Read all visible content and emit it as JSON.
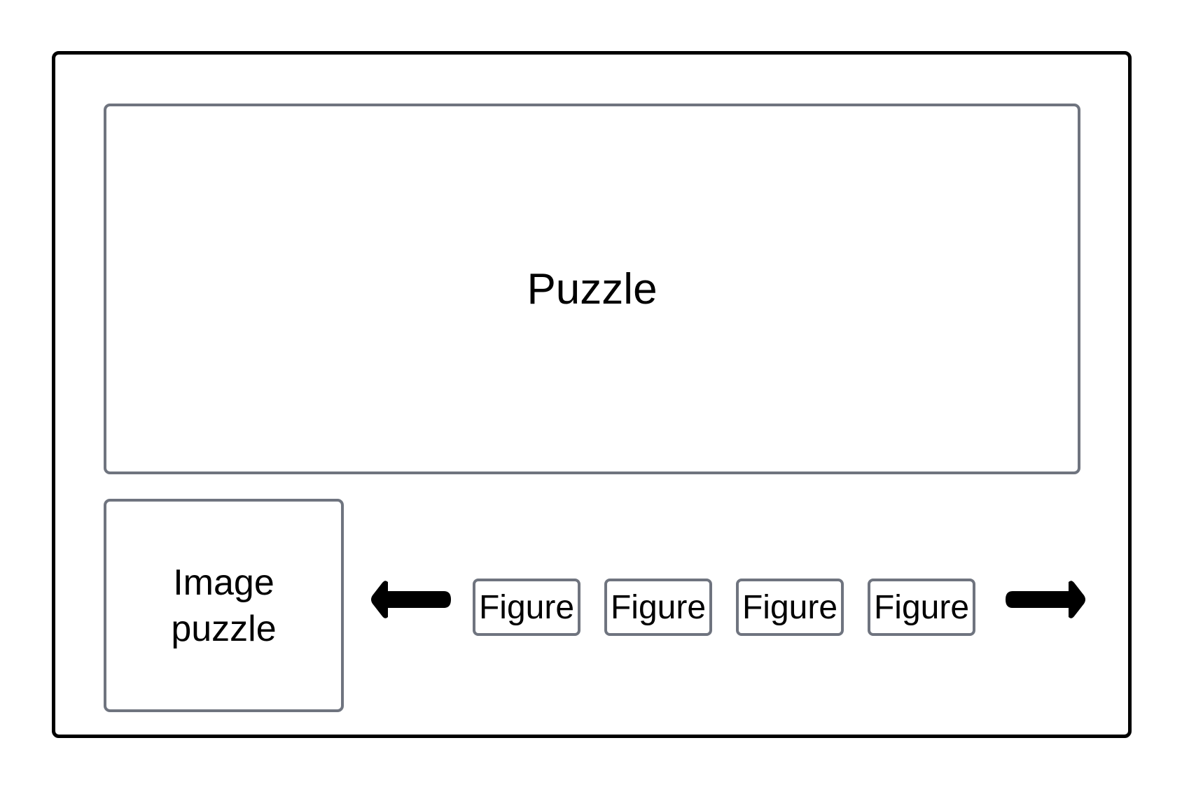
{
  "puzzle": {
    "label": "Puzzle"
  },
  "image_puzzle": {
    "label": "Image\npuzzle"
  },
  "figures": [
    {
      "label": "Figure"
    },
    {
      "label": "Figure"
    },
    {
      "label": "Figure"
    },
    {
      "label": "Figure"
    }
  ],
  "arrows": {
    "left": "left-arrow-icon",
    "right": "right-arrow-icon"
  },
  "colors": {
    "frame": "#000000",
    "box_border": "#6f747f",
    "arrow": "#000000"
  }
}
